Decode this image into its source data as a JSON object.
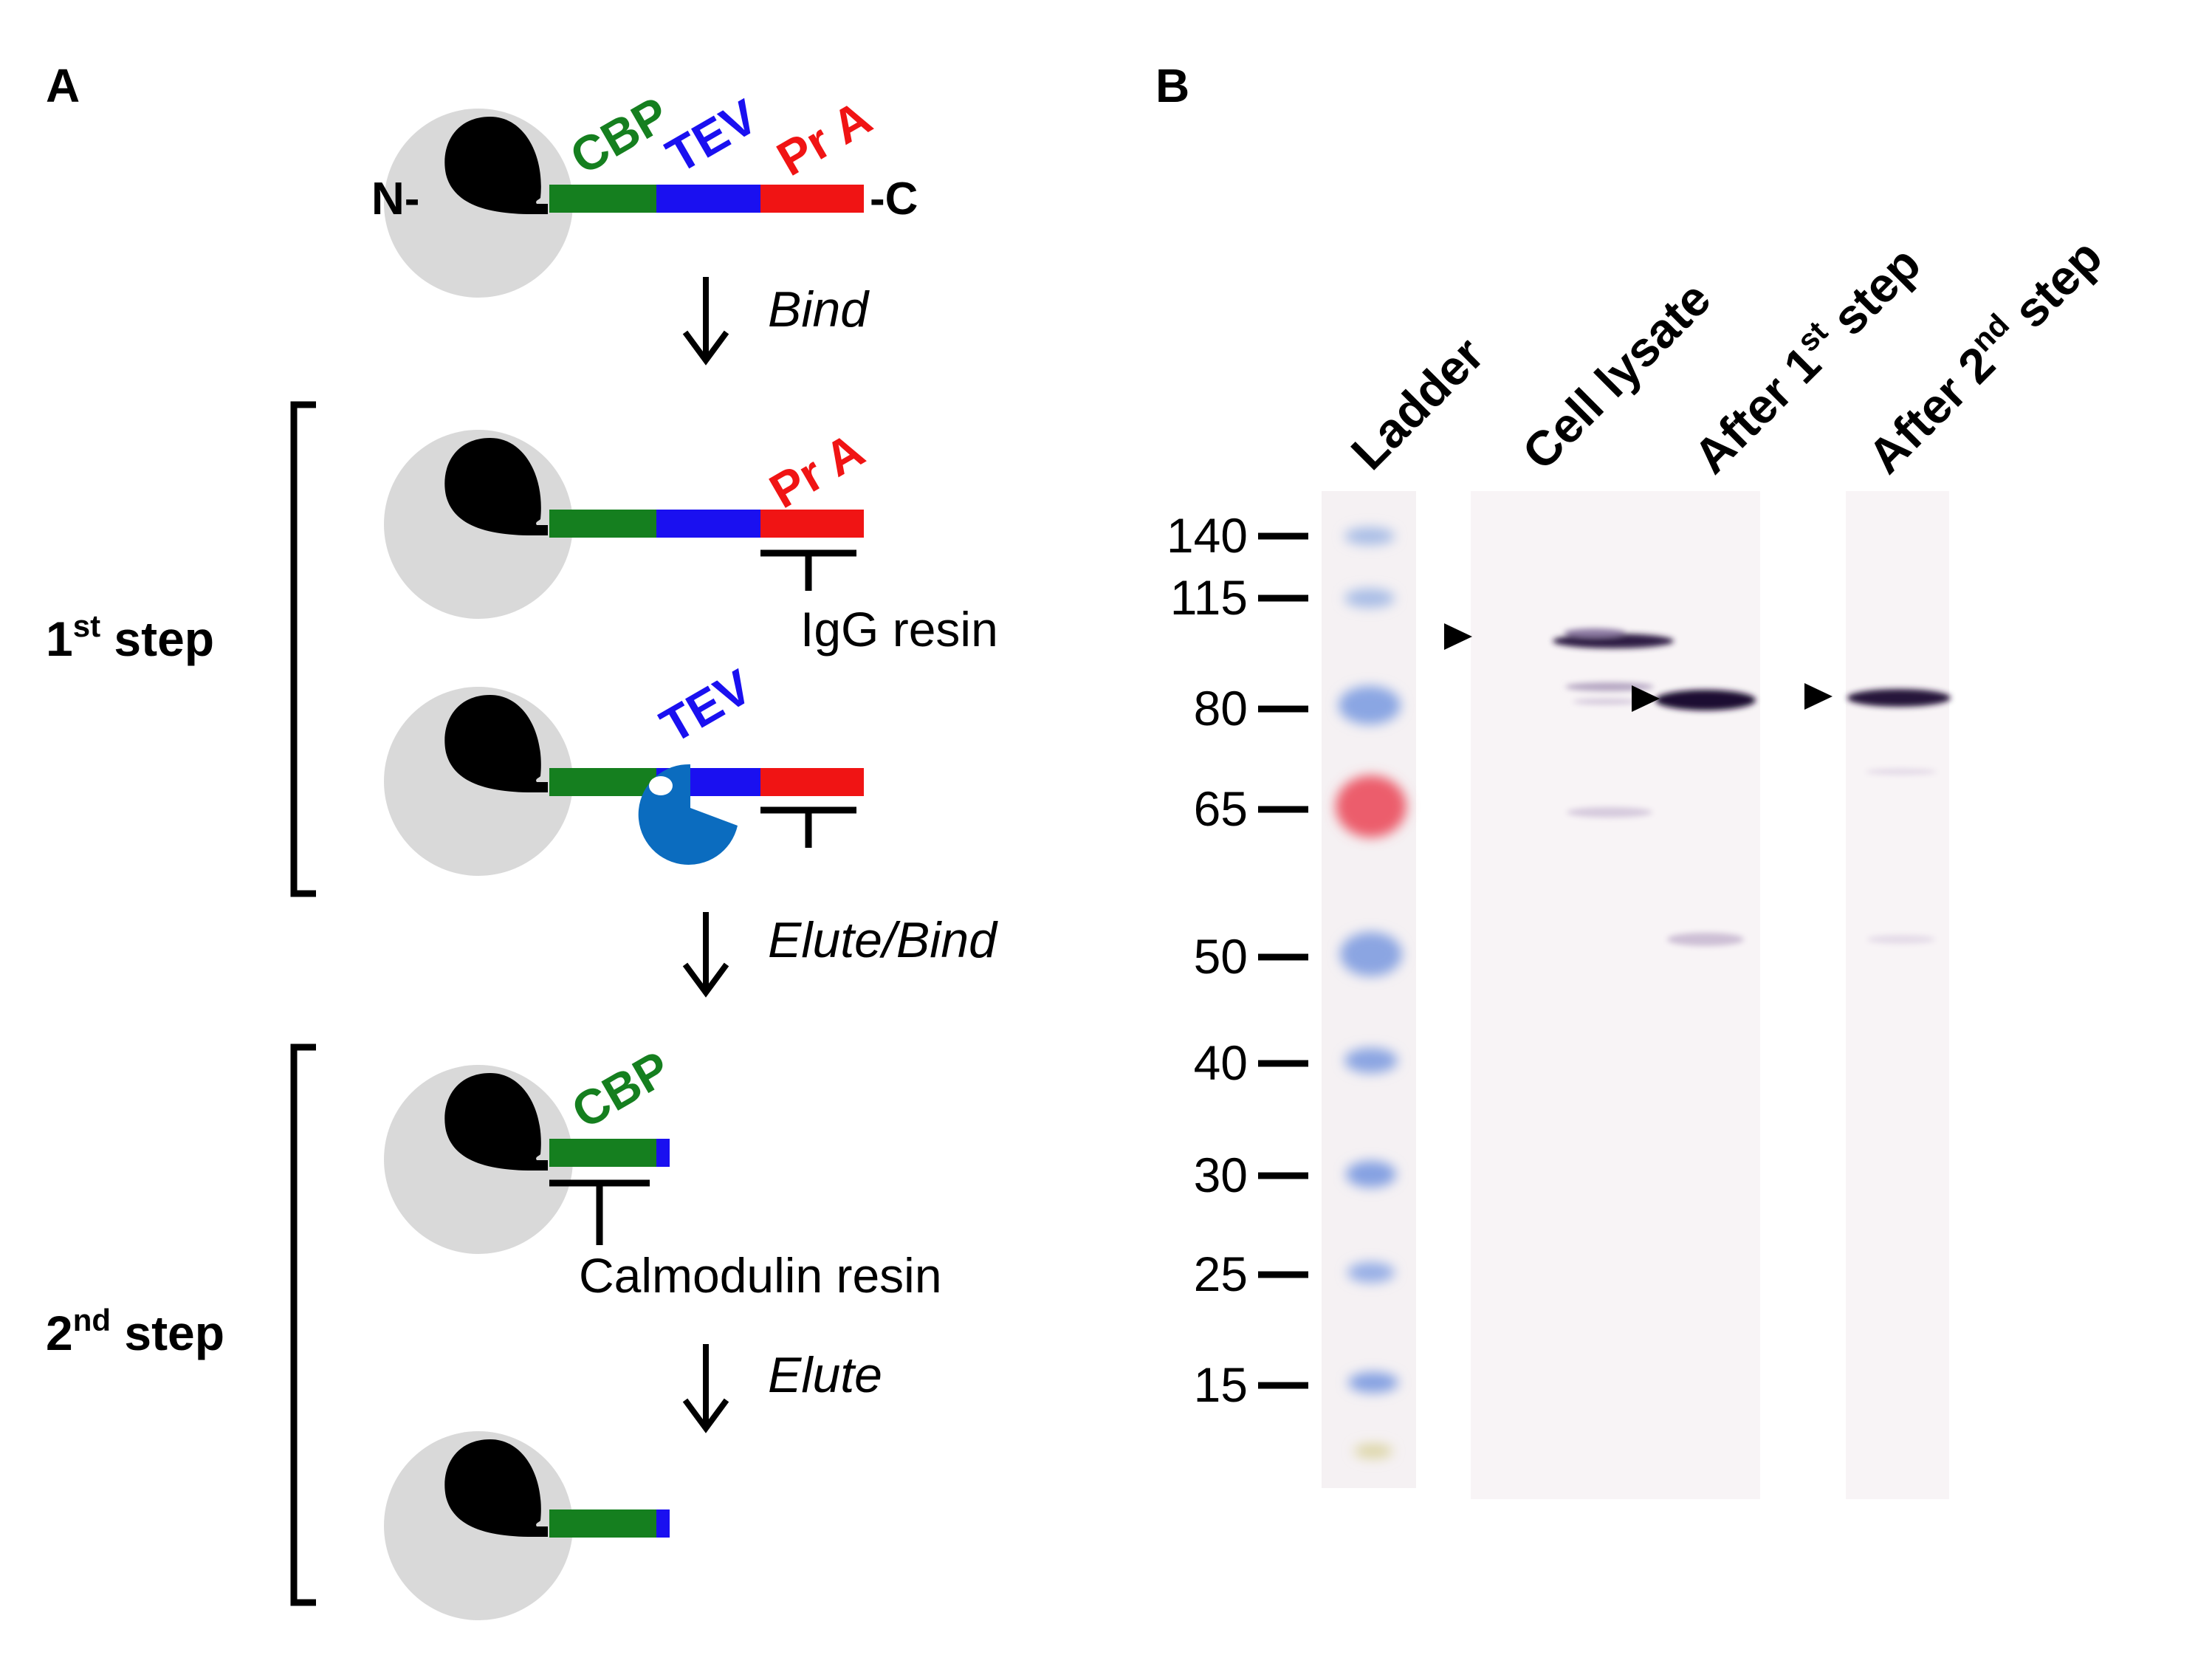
{
  "panel_a": {
    "label": "A",
    "terminus_n": "N-",
    "terminus_c": "-C",
    "tag_cbp": "CBP",
    "tag_tev": "TEV",
    "tag_pra": "Pr A",
    "step_bind": "Bind",
    "step_elute_bind": "Elute/Bind",
    "step_elute": "Elute",
    "first_step_num": "1",
    "first_step_sup": "st",
    "first_step_word": " step",
    "second_step_num": "2",
    "second_step_sup": "nd",
    "second_step_word": " step",
    "igg_resin": "IgG resin",
    "calmodulin_resin": "Calmodulin resin",
    "colors": {
      "cbp": "#157f1f",
      "tev": "#1a10f0",
      "pra": "#f01414",
      "tev_protease": "#0b6cbf",
      "cell": "#d9d9d9",
      "protein": "#000000"
    }
  },
  "panel_b": {
    "label": "B",
    "lanes": {
      "ladder": "Ladder",
      "lysate": "Cell lysate",
      "after1_main": "After 1",
      "after1_sup": "st",
      "after1_tail": " step",
      "after2_main": "After  2",
      "after2_sup": "nd",
      "after2_tail": "  step"
    },
    "markers": [
      "140",
      "115",
      "80",
      "65",
      "50",
      "40",
      "30",
      "25",
      "15"
    ]
  }
}
